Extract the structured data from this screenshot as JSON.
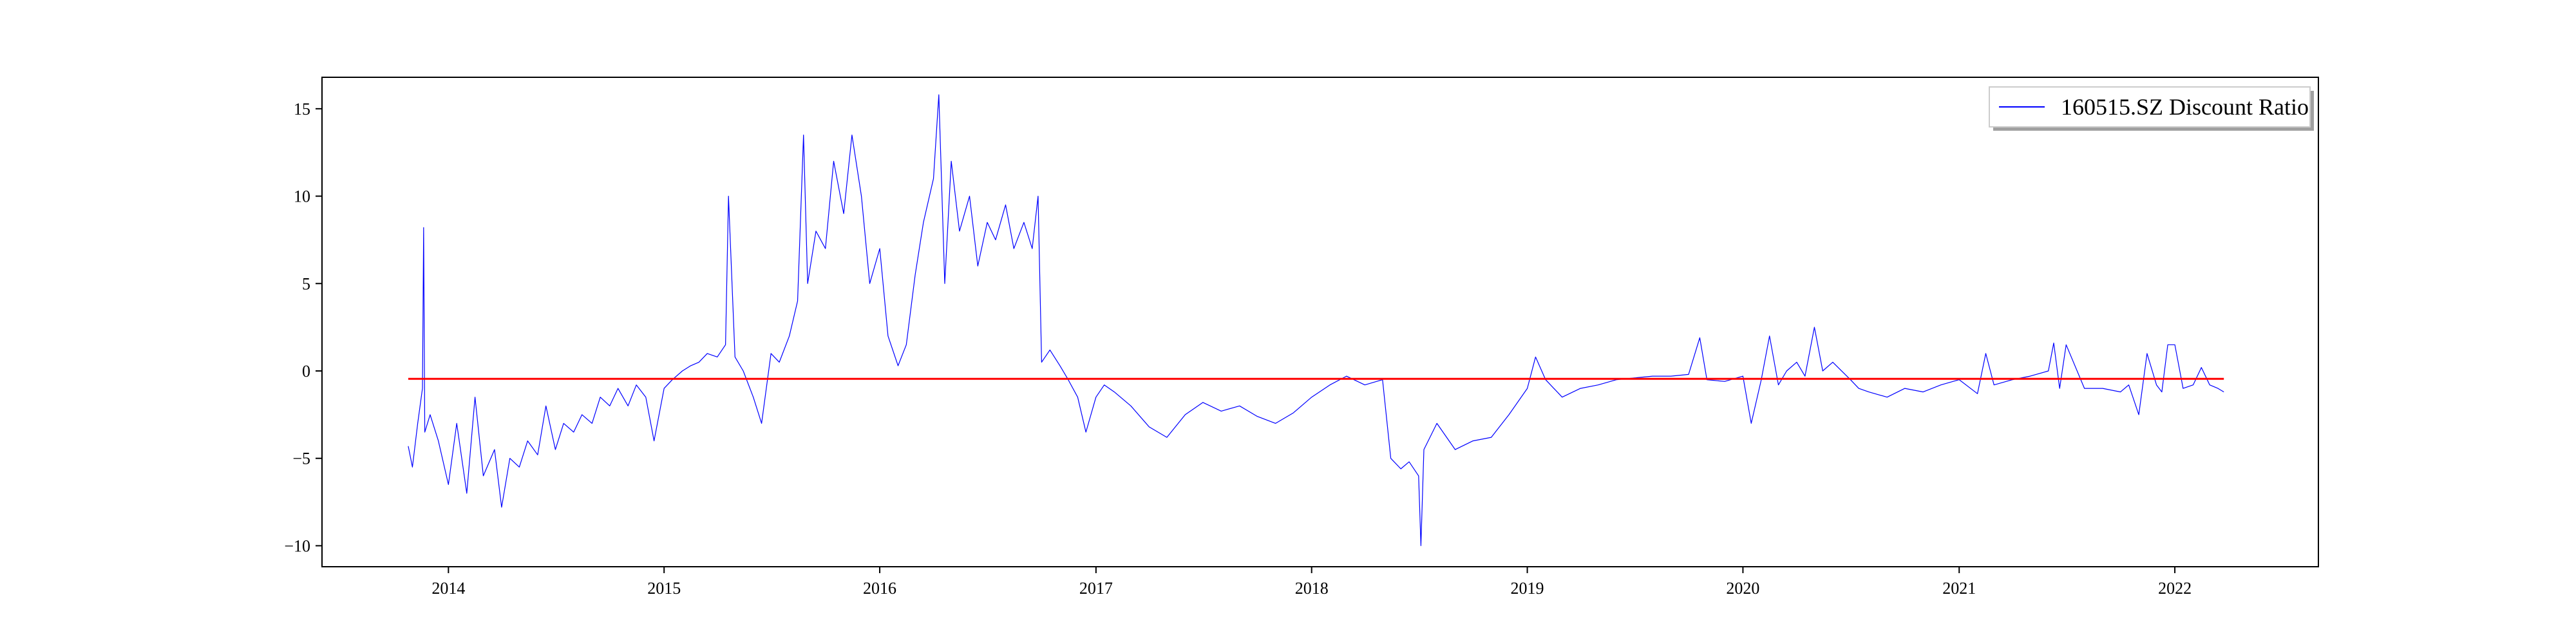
{
  "chart_data": {
    "type": "line",
    "title": "",
    "xlabel": "",
    "ylabel": "",
    "x_ticks": [
      "2014",
      "2015",
      "2016",
      "2017",
      "2018",
      "2019",
      "2020",
      "2021",
      "2022"
    ],
    "y_ticks": [
      15,
      10,
      5,
      0,
      -5,
      -10
    ],
    "xlim": [
      "2013-06-01",
      "2022-09-01"
    ],
    "ylim": [
      -11.2,
      16.8
    ],
    "grid": false,
    "legend": {
      "position": "top-right",
      "entries": [
        "160515.SZ Discount Ratio"
      ]
    },
    "series": [
      {
        "name": "160515.SZ Discount Ratio",
        "color": "#0000ff",
        "x": [
          "2013-10-25",
          "2013-11-01",
          "2013-11-10",
          "2013-11-18",
          "2013-11-20",
          "2013-11-22",
          "2013-12-01",
          "2013-12-15",
          "2014-01-01",
          "2014-01-15",
          "2014-02-01",
          "2014-02-15",
          "2014-03-01",
          "2014-03-20",
          "2014-04-01",
          "2014-04-15",
          "2014-05-01",
          "2014-05-15",
          "2014-06-01",
          "2014-06-15",
          "2014-07-01",
          "2014-07-15",
          "2014-08-01",
          "2014-08-15",
          "2014-09-01",
          "2014-09-15",
          "2014-10-01",
          "2014-10-15",
          "2014-11-01",
          "2014-11-15",
          "2014-12-01",
          "2014-12-15",
          "2015-01-01",
          "2015-01-15",
          "2015-02-01",
          "2015-02-15",
          "2015-03-01",
          "2015-03-15",
          "2015-04-01",
          "2015-04-15",
          "2015-04-20",
          "2015-05-01",
          "2015-05-15",
          "2015-06-01",
          "2015-06-15",
          "2015-07-01",
          "2015-07-15",
          "2015-08-01",
          "2015-08-15",
          "2015-08-25",
          "2015-09-01",
          "2015-09-15",
          "2015-10-01",
          "2015-10-15",
          "2015-11-01",
          "2015-11-15",
          "2015-12-01",
          "2015-12-15",
          "2016-01-01",
          "2016-01-15",
          "2016-02-01",
          "2016-02-15",
          "2016-03-01",
          "2016-03-15",
          "2016-04-01",
          "2016-04-10",
          "2016-04-20",
          "2016-05-01",
          "2016-05-15",
          "2016-06-01",
          "2016-06-15",
          "2016-07-01",
          "2016-07-15",
          "2016-08-01",
          "2016-08-15",
          "2016-09-01",
          "2016-09-15",
          "2016-09-25",
          "2016-10-01",
          "2016-10-15",
          "2016-11-01",
          "2016-11-15",
          "2016-12-01",
          "2016-12-15",
          "2017-01-01",
          "2017-01-15",
          "2017-02-01",
          "2017-03-01",
          "2017-04-01",
          "2017-05-01",
          "2017-06-01",
          "2017-07-01",
          "2017-08-01",
          "2017-09-01",
          "2017-10-01",
          "2017-11-01",
          "2017-12-01",
          "2018-01-01",
          "2018-02-01",
          "2018-03-01",
          "2018-04-01",
          "2018-05-01",
          "2018-05-15",
          "2018-06-01",
          "2018-06-15",
          "2018-07-01",
          "2018-07-05",
          "2018-07-10",
          "2018-08-01",
          "2018-09-01",
          "2018-10-01",
          "2018-11-01",
          "2018-12-01",
          "2019-01-01",
          "2019-01-15",
          "2019-02-01",
          "2019-03-01",
          "2019-04-01",
          "2019-05-01",
          "2019-06-01",
          "2019-07-01",
          "2019-08-01",
          "2019-09-01",
          "2019-10-01",
          "2019-10-20",
          "2019-11-01",
          "2019-12-01",
          "2020-01-01",
          "2020-01-15",
          "2020-02-01",
          "2020-02-15",
          "2020-03-01",
          "2020-03-15",
          "2020-04-01",
          "2020-04-15",
          "2020-05-01",
          "2020-05-15",
          "2020-06-01",
          "2020-07-01",
          "2020-07-15",
          "2020-08-01",
          "2020-09-01",
          "2020-10-01",
          "2020-11-01",
          "2020-12-01",
          "2021-01-01",
          "2021-02-01",
          "2021-02-15",
          "2021-03-01",
          "2021-04-01",
          "2021-05-01",
          "2021-06-01",
          "2021-06-10",
          "2021-06-20",
          "2021-07-01",
          "2021-08-01",
          "2021-09-01",
          "2021-10-01",
          "2021-10-15",
          "2021-11-01",
          "2021-11-15",
          "2021-12-01",
          "2021-12-10",
          "2021-12-20",
          "2022-01-01",
          "2022-01-15",
          "2022-02-01",
          "2022-02-15",
          "2022-03-01",
          "2022-03-15",
          "2022-03-25"
        ],
        "y": [
          -4.3,
          -5.5,
          -3.0,
          -1.0,
          8.2,
          -3.5,
          -2.5,
          -4.0,
          -6.5,
          -3.0,
          -7.0,
          -1.5,
          -6.0,
          -4.5,
          -7.8,
          -5.0,
          -5.5,
          -4.0,
          -4.8,
          -2.0,
          -4.5,
          -3.0,
          -3.5,
          -2.5,
          -3.0,
          -1.5,
          -2.0,
          -1.0,
          -2.0,
          -0.8,
          -1.5,
          -4.0,
          -1.0,
          -0.5,
          0.0,
          0.3,
          0.5,
          1.0,
          0.8,
          1.5,
          10.0,
          0.8,
          0.0,
          -1.5,
          -3.0,
          1.0,
          0.5,
          2.0,
          4.0,
          13.5,
          5.0,
          8.0,
          7.0,
          12.0,
          9.0,
          13.5,
          10.0,
          5.0,
          7.0,
          2.0,
          0.3,
          1.5,
          5.5,
          8.5,
          11.0,
          15.8,
          5.0,
          12.0,
          8.0,
          10.0,
          6.0,
          8.5,
          7.5,
          9.5,
          7.0,
          8.5,
          7.0,
          10.0,
          0.5,
          1.2,
          0.3,
          -0.5,
          -1.5,
          -3.5,
          -1.5,
          -0.8,
          -1.2,
          -2.0,
          -3.2,
          -3.8,
          -2.5,
          -1.8,
          -2.3,
          -2.0,
          -2.6,
          -3.0,
          -2.4,
          -1.5,
          -0.8,
          -0.3,
          -0.8,
          -0.5,
          -5.0,
          -5.6,
          -5.2,
          -6.0,
          -10.0,
          -4.5,
          -3.0,
          -4.5,
          -4.0,
          -3.8,
          -2.5,
          -1.0,
          0.8,
          -0.5,
          -1.5,
          -1.0,
          -0.8,
          -0.5,
          -0.4,
          -0.3,
          -0.3,
          -0.2,
          1.9,
          -0.5,
          -0.6,
          -0.3,
          -3.0,
          -0.5,
          2.0,
          -0.8,
          0.0,
          0.5,
          -0.3,
          2.5,
          0.0,
          0.5,
          -0.5,
          -1.0,
          -1.2,
          -1.5,
          -1.0,
          -1.2,
          -0.8,
          -0.5,
          -1.3,
          1.0,
          -0.8,
          -0.5,
          -0.3,
          0.0,
          1.6,
          -1.0,
          1.5,
          -1.0,
          -1.0,
          -1.2,
          -0.8,
          -2.5,
          1.0,
          -0.8,
          -1.2,
          1.5,
          1.5,
          -1.0,
          -0.8,
          0.2,
          -0.8,
          -1.0,
          -1.2
        ],
        "line_width": 1.2
      },
      {
        "name": "",
        "color": "#ff0000",
        "x": [
          "2013-10-25",
          "2022-03-25"
        ],
        "y": [
          -0.45,
          -0.45
        ],
        "line_width": 3
      }
    ]
  }
}
